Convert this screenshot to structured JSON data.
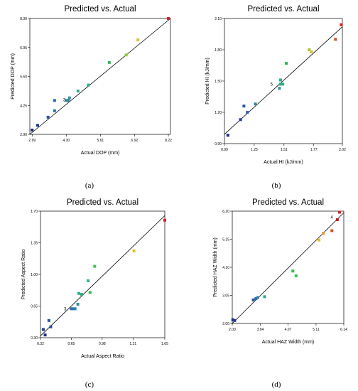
{
  "chart_data": [
    {
      "type": "scatter",
      "title": "Predicted vs. Actual",
      "xlabel": "Actual DOP (mm)",
      "ylabel": "Predicted DOP (mm)",
      "caption": "(a)",
      "xlim": [
        2.9,
        8.3
      ],
      "ylim": [
        2.9,
        8.3
      ],
      "xticks": [
        "2.99",
        "4.30",
        "5.61",
        "6.92",
        "8.22"
      ],
      "xtick_values": [
        2.99,
        4.3,
        5.61,
        6.92,
        8.22
      ],
      "yticks": [
        "2.90",
        "4.25",
        "5.60",
        "6.95",
        "8.30"
      ],
      "ytick_values": [
        2.9,
        4.25,
        5.6,
        6.95,
        8.3
      ],
      "fit_line": [
        [
          2.9,
          2.9
        ],
        [
          8.3,
          8.3
        ]
      ],
      "annotations": [
        {
          "text": "3",
          "x": 4.35,
          "y": 4.5
        }
      ],
      "points": [
        {
          "x": 2.99,
          "y": 3.1,
          "color": "#1e2a8c"
        },
        {
          "x": 3.2,
          "y": 3.32,
          "color": "#1e3c96"
        },
        {
          "x": 3.6,
          "y": 3.7,
          "color": "#2a56a6"
        },
        {
          "x": 3.85,
          "y": 4.0,
          "color": "#2a6ab2"
        },
        {
          "x": 3.85,
          "y": 4.48,
          "color": "#2a6ab2"
        },
        {
          "x": 4.3,
          "y": 4.48,
          "color": "#2e86a6"
        },
        {
          "x": 4.38,
          "y": 4.48,
          "color": "#2e86a6"
        },
        {
          "x": 4.42,
          "y": 4.6,
          "color": "#2e90a0"
        },
        {
          "x": 4.75,
          "y": 4.92,
          "color": "#2ea890"
        },
        {
          "x": 5.15,
          "y": 5.2,
          "color": "#2eb080"
        },
        {
          "x": 5.95,
          "y": 6.25,
          "color": "#33b85a"
        },
        {
          "x": 6.6,
          "y": 6.6,
          "color": "#8cc43c"
        },
        {
          "x": 7.05,
          "y": 7.3,
          "color": "#dcc02a"
        },
        {
          "x": 8.22,
          "y": 8.3,
          "color": "#d42222"
        }
      ]
    },
    {
      "type": "scatter",
      "title": "Predicted vs. Actual",
      "xlabel": "Actual HI (kJ/mm)",
      "ylabel": "Predicted HI (kJ/mm)",
      "caption": "(b)",
      "xlim": [
        0.99,
        2.02
      ],
      "ylim": [
        0.9,
        2.1
      ],
      "xticks": [
        "0.99",
        "1.25",
        "1.51",
        "1.77",
        "2.02"
      ],
      "xtick_values": [
        0.99,
        1.25,
        1.51,
        1.77,
        2.02
      ],
      "yticks": [
        "0.90",
        "1.20",
        "1.50",
        "1.80",
        "2.10"
      ],
      "ytick_values": [
        0.9,
        1.2,
        1.5,
        1.8,
        2.1
      ],
      "fit_line": [
        [
          0.99,
          0.99
        ],
        [
          2.02,
          2.02
        ]
      ],
      "annotations": [
        {
          "text": "5",
          "x": 1.43,
          "y": 1.47
        }
      ],
      "points": [
        {
          "x": 1.02,
          "y": 0.98,
          "color": "#1e2a8c"
        },
        {
          "x": 1.13,
          "y": 1.13,
          "color": "#1e3c96"
        },
        {
          "x": 1.16,
          "y": 1.26,
          "color": "#2a56a6"
        },
        {
          "x": 1.19,
          "y": 1.2,
          "color": "#2a6ab2"
        },
        {
          "x": 1.26,
          "y": 1.28,
          "color": "#2e86a6"
        },
        {
          "x": 1.47,
          "y": 1.43,
          "color": "#2e96a0"
        },
        {
          "x": 1.48,
          "y": 1.51,
          "color": "#2ea890"
        },
        {
          "x": 1.48,
          "y": 1.47,
          "color": "#2eaa88"
        },
        {
          "x": 1.5,
          "y": 1.47,
          "color": "#2eb080"
        },
        {
          "x": 1.53,
          "y": 1.67,
          "color": "#33b85a"
        },
        {
          "x": 1.73,
          "y": 1.8,
          "color": "#a8c836"
        },
        {
          "x": 1.75,
          "y": 1.78,
          "color": "#dcc02a"
        },
        {
          "x": 1.96,
          "y": 1.9,
          "color": "#d45022"
        },
        {
          "x": 2.01,
          "y": 2.04,
          "color": "#d42222"
        }
      ]
    },
    {
      "type": "scatter",
      "title": "Predicted vs. Actual",
      "xlabel": "Actual Aspect Ratio",
      "ylabel": "Predicted Aspect Ratio",
      "caption": "(c)",
      "xlim": [
        0.32,
        1.65
      ],
      "ylim": [
        0.3,
        1.7
      ],
      "xticks": [
        "0.32",
        "0.65",
        "0.98",
        "1.31",
        "1.65"
      ],
      "xtick_values": [
        0.32,
        0.65,
        0.98,
        1.31,
        1.65
      ],
      "yticks": [
        "0.30",
        "0.65",
        "1.00",
        "1.35",
        "1.70"
      ],
      "ytick_values": [
        0.3,
        0.65,
        1.0,
        1.35,
        1.7
      ],
      "fit_line": [
        [
          0.32,
          0.32
        ],
        [
          1.65,
          1.65
        ]
      ],
      "annotations": [
        {
          "text": "3",
          "x": 0.62,
          "y": 0.62
        }
      ],
      "points": [
        {
          "x": 0.37,
          "y": 0.33,
          "color": "#1e2a8c"
        },
        {
          "x": 0.35,
          "y": 0.39,
          "color": "#1e3c96"
        },
        {
          "x": 0.43,
          "y": 0.42,
          "color": "#2a4ea0"
        },
        {
          "x": 0.41,
          "y": 0.49,
          "color": "#2a56a6"
        },
        {
          "x": 0.65,
          "y": 0.62,
          "color": "#2a6ab2"
        },
        {
          "x": 0.67,
          "y": 0.62,
          "color": "#2e7aac"
        },
        {
          "x": 0.69,
          "y": 0.62,
          "color": "#2e86a6"
        },
        {
          "x": 0.72,
          "y": 0.67,
          "color": "#2e96a0"
        },
        {
          "x": 0.73,
          "y": 0.79,
          "color": "#2ea890"
        },
        {
          "x": 0.76,
          "y": 0.78,
          "color": "#2eb080"
        },
        {
          "x": 0.83,
          "y": 0.93,
          "color": "#2eb878"
        },
        {
          "x": 0.85,
          "y": 0.8,
          "color": "#33b85a"
        },
        {
          "x": 0.9,
          "y": 1.09,
          "color": "#40c050"
        },
        {
          "x": 1.32,
          "y": 1.26,
          "color": "#dcc02a"
        },
        {
          "x": 1.65,
          "y": 1.6,
          "color": "#d42222"
        }
      ]
    },
    {
      "type": "scatter",
      "title": "Predicted vs. Actual",
      "xlabel": "Actual HAZ Width (mm)",
      "ylabel": "Predicted HAZ Width (mm)",
      "caption": "(d)",
      "xlim": [
        2.0,
        6.14
      ],
      "ylim": [
        2.0,
        6.2
      ],
      "xticks": [
        "2.00",
        "3.04",
        "4.07",
        "5.11",
        "6.14"
      ],
      "xtick_values": [
        2.0,
        3.04,
        4.07,
        5.11,
        6.14
      ],
      "yticks": [
        "2.00",
        "3.05",
        "4.10",
        "5.15",
        "6.20"
      ],
      "ytick_values": [
        2.0,
        3.05,
        4.1,
        5.15,
        6.2
      ],
      "fit_line": [
        [
          2.0,
          2.0
        ],
        [
          6.14,
          6.14
        ]
      ],
      "annotations": [
        {
          "text": "4",
          "x": 5.82,
          "y": 5.98
        }
      ],
      "points": [
        {
          "x": 2.02,
          "y": 2.14,
          "color": "#1e2a8c"
        },
        {
          "x": 2.09,
          "y": 2.11,
          "color": "#1e3c96"
        },
        {
          "x": 2.78,
          "y": 2.88,
          "color": "#2a56a6"
        },
        {
          "x": 2.88,
          "y": 2.93,
          "color": "#2a6ab2"
        },
        {
          "x": 2.95,
          "y": 2.97,
          "color": "#2e86a6"
        },
        {
          "x": 3.2,
          "y": 3.0,
          "color": "#2ea890"
        },
        {
          "x": 4.25,
          "y": 3.96,
          "color": "#33b85a"
        },
        {
          "x": 4.37,
          "y": 3.78,
          "color": "#40c050"
        },
        {
          "x": 5.22,
          "y": 5.12,
          "color": "#dcc02a"
        },
        {
          "x": 5.38,
          "y": 5.37,
          "color": "#e09a2a"
        },
        {
          "x": 5.7,
          "y": 5.47,
          "color": "#d45022"
        },
        {
          "x": 5.9,
          "y": 5.88,
          "color": "#c02222"
        },
        {
          "x": 5.98,
          "y": 6.16,
          "color": "#d42222"
        }
      ]
    }
  ]
}
